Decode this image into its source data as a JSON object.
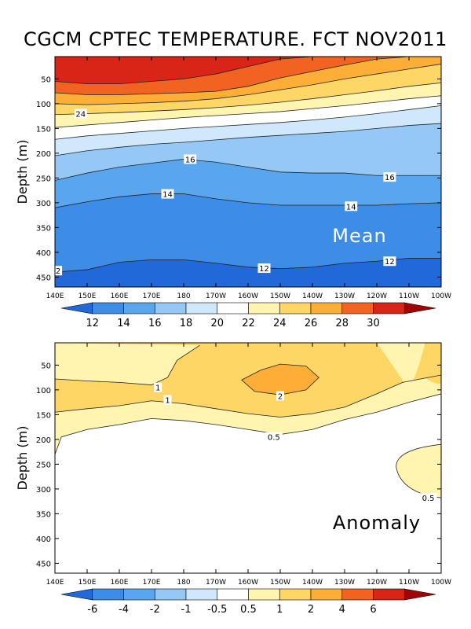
{
  "title": "CGCM CPTEC TEMPERATURE. FCT NOV2011",
  "chart_data": [
    {
      "type": "heatmap",
      "panel": "Mean",
      "ylabel": "Depth (m)",
      "x_ticks": [
        "140E",
        "150E",
        "160E",
        "170E",
        "180",
        "170W",
        "160W",
        "150W",
        "140W",
        "130W",
        "120W",
        "110W",
        "100W"
      ],
      "y_ticks": [
        50,
        100,
        150,
        200,
        250,
        300,
        350,
        400,
        450
      ],
      "ylim": [
        5,
        470
      ],
      "colorbar_levels": [
        "12",
        "14",
        "16",
        "18",
        "20",
        "22",
        "24",
        "26",
        "28",
        "30"
      ],
      "colorbar_colors": [
        "#2168d8",
        "#3d8ce6",
        "#5aa6ee",
        "#96c8f6",
        "#cfe8fb",
        "#ffffff",
        "#fff5b0",
        "#fed665",
        "#fcae37",
        "#f26322",
        "#d92418",
        "#a00505"
      ],
      "x_values": [
        140,
        150,
        160,
        170,
        180,
        190,
        200,
        210,
        220,
        230,
        240,
        250,
        260
      ],
      "isotherms": [
        {
          "level": 30,
          "depth": [
            55,
            60,
            60,
            55,
            50,
            40,
            25,
            10,
            5,
            5,
            5,
            5,
            5
          ]
        },
        {
          "level": 28,
          "depth": [
            78,
            82,
            82,
            80,
            78,
            75,
            65,
            48,
            35,
            22,
            10,
            5,
            5
          ]
        },
        {
          "level": 26,
          "depth": [
            100,
            102,
            100,
            98,
            95,
            90,
            82,
            72,
            62,
            50,
            40,
            30,
            20
          ]
        },
        {
          "level": 24,
          "depth": [
            122,
            120,
            118,
            115,
            112,
            108,
            103,
            97,
            90,
            82,
            74,
            65,
            58
          ]
        },
        {
          "level": 22,
          "depth": [
            148,
            143,
            138,
            133,
            128,
            124,
            120,
            116,
            110,
            104,
            97,
            90,
            84
          ]
        },
        {
          "level": 20,
          "depth": [
            172,
            165,
            160,
            155,
            150,
            146,
            142,
            138,
            133,
            127,
            120,
            112,
            104
          ]
        },
        {
          "level": 18,
          "depth": [
            205,
            195,
            188,
            182,
            178,
            173,
            168,
            164,
            160,
            156,
            150,
            144,
            140
          ]
        },
        {
          "level": 16,
          "depth": [
            255,
            240,
            228,
            220,
            212,
            218,
            228,
            238,
            240,
            240,
            245,
            245,
            245
          ]
        },
        {
          "level": 14,
          "depth": [
            310,
            298,
            288,
            282,
            282,
            292,
            300,
            305,
            305,
            305,
            305,
            302,
            300
          ]
        },
        {
          "level": 12,
          "depth": [
            440,
            435,
            420,
            415,
            415,
            422,
            430,
            433,
            430,
            422,
            418,
            412,
            412
          ]
        }
      ],
      "contour_labels": [
        {
          "text": "24",
          "x": 148,
          "depth": 120
        },
        {
          "text": "16",
          "x": 182,
          "depth": 212
        },
        {
          "text": "16",
          "x": 244,
          "depth": 248
        },
        {
          "text": "14",
          "x": 175,
          "depth": 282
        },
        {
          "text": "14",
          "x": 232,
          "depth": 307
        },
        {
          "text": "12",
          "x": 205,
          "depth": 432
        },
        {
          "text": "12",
          "x": 244,
          "depth": 418
        },
        {
          "text": "2",
          "x": 141,
          "depth": 437
        }
      ],
      "panel_label": "Mean"
    },
    {
      "type": "heatmap",
      "panel": "Anomaly",
      "ylabel": "Depth (m)",
      "x_ticks": [
        "140E",
        "150E",
        "160E",
        "170E",
        "180",
        "170W",
        "160W",
        "150W",
        "140W",
        "130W",
        "120W",
        "110W",
        "100W"
      ],
      "y_ticks": [
        50,
        100,
        150,
        200,
        250,
        300,
        350,
        400,
        450
      ],
      "ylim": [
        5,
        470
      ],
      "colorbar_levels": [
        "-6",
        "-4",
        "-2",
        "-1",
        "-0.5",
        "0.5",
        "1",
        "2",
        "4",
        "6"
      ],
      "colorbar_colors": [
        "#2168d8",
        "#3d8ce6",
        "#5aa6ee",
        "#96c8f6",
        "#cfe8fb",
        "#ffffff",
        "#fff5b0",
        "#fed665",
        "#fcae37",
        "#f26322",
        "#d92418",
        "#a00505"
      ],
      "x_values": [
        140,
        150,
        160,
        170,
        180,
        190,
        200,
        210,
        220,
        230,
        240,
        250,
        260
      ],
      "contours": [
        {
          "level": "0.5",
          "points": [
            [
              140,
              230
            ],
            [
              142,
              195
            ],
            [
              150,
              180
            ],
            [
              160,
              170
            ],
            [
              170,
              158
            ],
            [
              180,
              162
            ],
            [
              190,
              170
            ],
            [
              200,
              180
            ],
            [
              210,
              190
            ],
            [
              220,
              180
            ],
            [
              230,
              160
            ],
            [
              240,
              145
            ],
            [
              250,
              125
            ],
            [
              260,
              108
            ]
          ]
        },
        {
          "level": "1",
          "points": [
            [
              140,
              145
            ],
            [
              150,
              138
            ],
            [
              160,
              132
            ],
            [
              170,
              122
            ],
            [
              180,
              128
            ],
            [
              190,
              138
            ],
            [
              200,
              148
            ],
            [
              210,
              155
            ],
            [
              220,
              148
            ],
            [
              230,
              135
            ],
            [
              240,
              108
            ],
            [
              248,
              85
            ],
            [
              260,
              70
            ]
          ]
        },
        {
          "level": "1",
          "points": [
            [
              140,
              78
            ],
            [
              150,
              82
            ],
            [
              160,
              85
            ],
            [
              170,
              90
            ],
            [
              175,
              75
            ],
            [
              178,
              40
            ],
            [
              185,
              10
            ]
          ]
        },
        {
          "level": "2",
          "points": [
            [
              198,
              80
            ],
            [
              204,
              60
            ],
            [
              210,
              48
            ],
            [
              218,
              52
            ],
            [
              222,
              75
            ],
            [
              218,
              100
            ],
            [
              210,
              110
            ],
            [
              202,
              103
            ],
            [
              198,
              80
            ]
          ]
        }
      ],
      "contour_labels": [
        {
          "text": "1",
          "x": 172,
          "depth": 95
        },
        {
          "text": "1",
          "x": 175,
          "depth": 120
        },
        {
          "text": "2",
          "x": 210,
          "depth": 112
        },
        {
          "text": "0.5",
          "x": 208,
          "depth": 195
        },
        {
          "text": "0.5",
          "x": 256,
          "depth": 318
        }
      ],
      "panel_label": "Anomaly"
    }
  ]
}
